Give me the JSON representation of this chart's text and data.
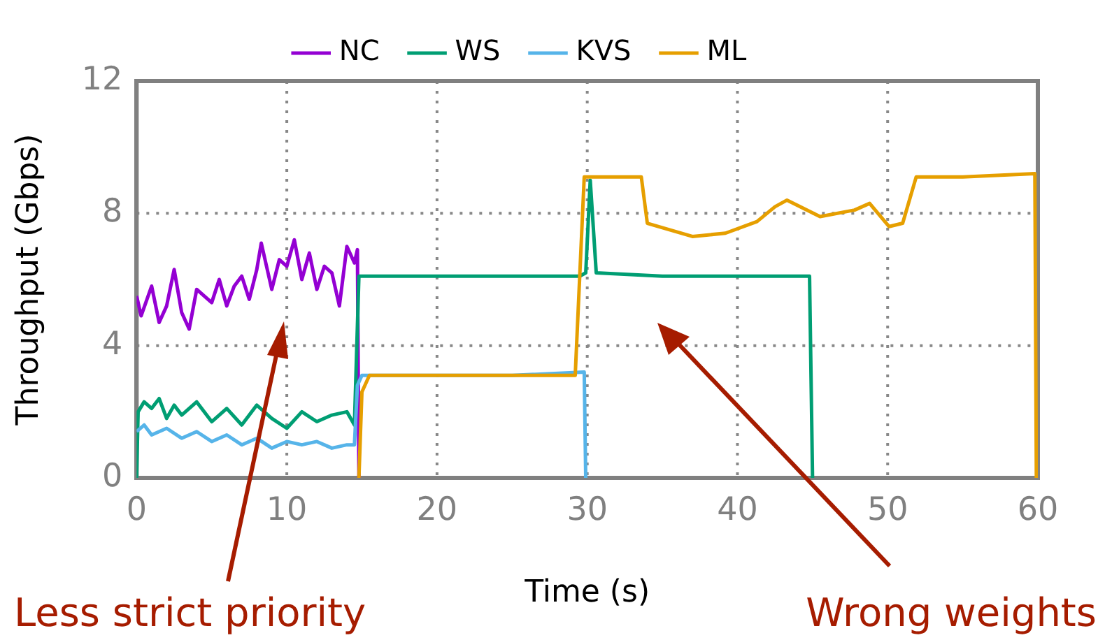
{
  "chart_data": {
    "type": "line",
    "xlabel": "Time (s)",
    "ylabel": "Throughput (Gbps)",
    "xlim": [
      0,
      60
    ],
    "xticks": [
      0,
      10,
      20,
      30,
      40,
      50,
      60
    ],
    "ylim": [
      0,
      12
    ],
    "yticks": [
      0,
      4,
      8,
      12
    ],
    "grid": true,
    "legend": "top",
    "marker": "none",
    "line_style": "solid",
    "series": [
      {
        "name": "NC",
        "color": "#9400d3",
        "x": [
          0,
          0.3,
          1,
          1.5,
          2,
          2.5,
          3,
          3.5,
          4,
          5,
          5.5,
          6,
          6.5,
          7,
          7.5,
          8,
          8.3,
          9,
          9.5,
          10,
          10.5,
          11,
          11.5,
          12,
          12.5,
          13,
          13.5,
          14,
          14.5,
          14.7,
          14.8
        ],
        "values": [
          5.5,
          4.9,
          5.8,
          4.7,
          5.2,
          6.3,
          5.0,
          4.5,
          5.7,
          5.3,
          6.0,
          5.2,
          5.8,
          6.1,
          5.4,
          6.3,
          7.1,
          5.7,
          6.6,
          6.4,
          7.2,
          6.0,
          6.8,
          5.7,
          6.4,
          6.2,
          5.2,
          7.0,
          6.5,
          6.9,
          0
        ]
      },
      {
        "name": "WS",
        "color": "#009e73",
        "x": [
          0,
          0.1,
          0.5,
          1,
          1.5,
          2,
          2.5,
          3,
          4,
          5,
          6,
          7,
          8,
          9,
          10,
          11,
          12,
          13,
          14,
          14.5,
          14.8,
          15,
          20,
          25,
          29.5,
          29.9,
          30.2,
          30.6,
          35,
          40,
          44.8,
          45
        ],
        "values": [
          0,
          2.0,
          2.3,
          2.1,
          2.4,
          1.8,
          2.2,
          1.9,
          2.3,
          1.7,
          2.1,
          1.6,
          2.2,
          1.8,
          1.5,
          2.0,
          1.7,
          1.9,
          2.0,
          1.6,
          6.1,
          6.1,
          6.1,
          6.1,
          6.1,
          6.2,
          9.0,
          6.2,
          6.1,
          6.1,
          6.1,
          0
        ]
      },
      {
        "name": "KVS",
        "color": "#56b4e9",
        "x": [
          0,
          0.5,
          1,
          2,
          3,
          4,
          5,
          6,
          7,
          8,
          9,
          10,
          11,
          12,
          13,
          14,
          14.5,
          14.7,
          15,
          20,
          25,
          29.8,
          29.9
        ],
        "values": [
          1.4,
          1.6,
          1.3,
          1.5,
          1.2,
          1.4,
          1.1,
          1.3,
          1.0,
          1.2,
          0.9,
          1.1,
          1.0,
          1.1,
          0.9,
          1.0,
          1.0,
          2.8,
          3.1,
          3.1,
          3.1,
          3.2,
          0
        ]
      },
      {
        "name": "ML",
        "color": "#e69f00",
        "x": [
          14.8,
          15,
          15.5,
          20,
          25,
          29.2,
          29.8,
          33.6,
          34,
          37,
          39.2,
          41.3,
          42.5,
          43.3,
          45.5,
          47.8,
          48.8,
          50.1,
          51,
          51.9,
          55,
          59.8,
          59.9
        ],
        "values": [
          0,
          2.6,
          3.1,
          3.1,
          3.1,
          3.1,
          9.1,
          9.1,
          7.7,
          7.3,
          7.4,
          7.75,
          8.2,
          8.4,
          7.9,
          8.1,
          8.3,
          7.6,
          7.7,
          9.1,
          9.1,
          9.2,
          0
        ]
      }
    ],
    "annotations": [
      "Less strict priority",
      "Wrong weights"
    ]
  }
}
